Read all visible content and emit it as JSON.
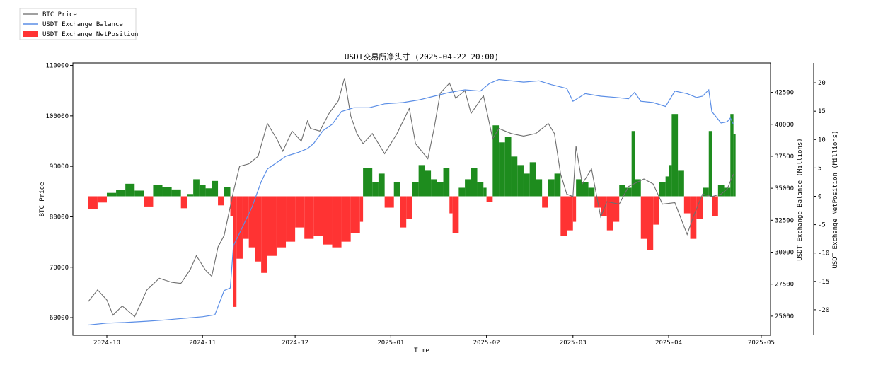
{
  "chart_data": {
    "type": "line+bar",
    "title": "USDT交易所净头寸 (2025-04-22 20:00)",
    "xlabel": "Time",
    "legend_position": "top-left",
    "legend": [
      {
        "label": "BTC Price",
        "color": "#808080",
        "kind": "line"
      },
      {
        "label": "USDT Exchange Balance",
        "color": "#5b8ee6",
        "kind": "line"
      },
      {
        "label": "USDT Exchange NetPosition",
        "color": "#ff3333",
        "kind": "bar"
      }
    ],
    "x_ticks": [
      "2024-10",
      "2024-11",
      "2024-12",
      "2025-01",
      "2025-02",
      "2025-03",
      "2025-04",
      "2025-05"
    ],
    "x_range": [
      "2024-09-20",
      "2025-05-04"
    ],
    "axes": {
      "price": {
        "label": "BTC Price",
        "range": [
          56500,
          110500
        ],
        "ticks": [
          60000,
          70000,
          80000,
          90000,
          100000,
          110000
        ]
      },
      "balance": {
        "label": "USDT Exchange Balance (Millions)",
        "range": [
          23500,
          44800
        ],
        "ticks": [
          25000,
          27500,
          30000,
          32500,
          35000,
          37500,
          40000,
          42500
        ]
      },
      "netposition": {
        "label": "USDT Exchange NetPosition (Millions)",
        "range": [
          -24.5,
          23.5
        ],
        "ticks": [
          -20,
          -15,
          -10,
          -5,
          0,
          5,
          10,
          15,
          20
        ]
      }
    },
    "series": [
      {
        "name": "BTC Price",
        "color": "#6e6e6e",
        "points": [
          [
            "2024-09-25",
            63200
          ],
          [
            "2024-09-28",
            65500
          ],
          [
            "2024-10-01",
            63500
          ],
          [
            "2024-10-03",
            60500
          ],
          [
            "2024-10-06",
            62300
          ],
          [
            "2024-10-10",
            60200
          ],
          [
            "2024-10-14",
            65500
          ],
          [
            "2024-10-18",
            67800
          ],
          [
            "2024-10-22",
            67000
          ],
          [
            "2024-10-25",
            66800
          ],
          [
            "2024-10-28",
            69500
          ],
          [
            "2024-10-30",
            72300
          ],
          [
            "2024-11-02",
            69400
          ],
          [
            "2024-11-04",
            68200
          ],
          [
            "2024-11-06",
            74000
          ],
          [
            "2024-11-08",
            76300
          ],
          [
            "2024-11-11",
            85000
          ],
          [
            "2024-11-13",
            90000
          ],
          [
            "2024-11-16",
            90500
          ],
          [
            "2024-11-19",
            92000
          ],
          [
            "2024-11-22",
            98500
          ],
          [
            "2024-11-25",
            95500
          ],
          [
            "2024-11-27",
            93000
          ],
          [
            "2024-11-30",
            97000
          ],
          [
            "2024-12-03",
            95000
          ],
          [
            "2024-12-05",
            99000
          ],
          [
            "2024-12-06",
            97500
          ],
          [
            "2024-12-09",
            97000
          ],
          [
            "2024-12-12",
            100500
          ],
          [
            "2024-12-15",
            103000
          ],
          [
            "2024-12-17",
            107500
          ],
          [
            "2024-12-19",
            100000
          ],
          [
            "2024-12-21",
            96500
          ],
          [
            "2024-12-23",
            94500
          ],
          [
            "2024-12-26",
            96500
          ],
          [
            "2024-12-30",
            92500
          ],
          [
            "2025-01-03",
            96500
          ],
          [
            "2025-01-07",
            101500
          ],
          [
            "2025-01-09",
            94500
          ],
          [
            "2025-01-13",
            91500
          ],
          [
            "2025-01-15",
            97500
          ],
          [
            "2025-01-17",
            104500
          ],
          [
            "2025-01-20",
            106500
          ],
          [
            "2025-01-22",
            103500
          ],
          [
            "2025-01-25",
            105000
          ],
          [
            "2025-01-27",
            100500
          ],
          [
            "2025-01-31",
            104000
          ],
          [
            "2025-02-03",
            95500
          ],
          [
            "2025-02-05",
            97500
          ],
          [
            "2025-02-09",
            96500
          ],
          [
            "2025-02-13",
            96000
          ],
          [
            "2025-02-17",
            96500
          ],
          [
            "2025-02-21",
            98500
          ],
          [
            "2025-02-23",
            96500
          ],
          [
            "2025-02-25",
            88500
          ],
          [
            "2025-02-27",
            84500
          ],
          [
            "2025-03-01",
            84000
          ],
          [
            "2025-03-02",
            94000
          ],
          [
            "2025-03-04",
            86500
          ],
          [
            "2025-03-07",
            89500
          ],
          [
            "2025-03-10",
            80000
          ],
          [
            "2025-03-12",
            83000
          ],
          [
            "2025-03-16",
            82500
          ],
          [
            "2025-03-19",
            86000
          ],
          [
            "2025-03-24",
            87500
          ],
          [
            "2025-03-27",
            86500
          ],
          [
            "2025-03-30",
            82500
          ],
          [
            "2025-04-03",
            82800
          ],
          [
            "2025-04-07",
            76500
          ],
          [
            "2025-04-09",
            80000
          ],
          [
            "2025-04-12",
            84500
          ],
          [
            "2025-04-15",
            84000
          ],
          [
            "2025-04-18",
            84500
          ],
          [
            "2025-04-20",
            85500
          ],
          [
            "2025-04-22",
            88500
          ]
        ]
      },
      {
        "name": "USDT Exchange Balance",
        "color": "#5b8ee6",
        "points": [
          [
            "2024-09-25",
            24300
          ],
          [
            "2024-10-01",
            24450
          ],
          [
            "2024-10-07",
            24500
          ],
          [
            "2024-10-14",
            24600
          ],
          [
            "2024-10-20",
            24700
          ],
          [
            "2024-10-27",
            24850
          ],
          [
            "2024-11-01",
            24950
          ],
          [
            "2024-11-05",
            25100
          ],
          [
            "2024-11-08",
            27000
          ],
          [
            "2024-11-10",
            27200
          ],
          [
            "2024-11-11",
            30500
          ],
          [
            "2024-11-14",
            32000
          ],
          [
            "2024-11-17",
            33500
          ],
          [
            "2024-11-20",
            35500
          ],
          [
            "2024-11-22",
            36500
          ],
          [
            "2024-11-25",
            37000
          ],
          [
            "2024-11-28",
            37500
          ],
          [
            "2024-12-02",
            37800
          ],
          [
            "2024-12-05",
            38100
          ],
          [
            "2024-12-07",
            38500
          ],
          [
            "2024-12-10",
            39500
          ],
          [
            "2024-12-13",
            40000
          ],
          [
            "2024-12-16",
            41000
          ],
          [
            "2024-12-20",
            41300
          ],
          [
            "2024-12-25",
            41300
          ],
          [
            "2024-12-30",
            41600
          ],
          [
            "2025-01-05",
            41700
          ],
          [
            "2025-01-10",
            41900
          ],
          [
            "2025-01-15",
            42200
          ],
          [
            "2025-01-20",
            42500
          ],
          [
            "2025-01-25",
            42700
          ],
          [
            "2025-01-30",
            42600
          ],
          [
            "2025-02-02",
            43200
          ],
          [
            "2025-02-05",
            43500
          ],
          [
            "2025-02-09",
            43400
          ],
          [
            "2025-02-13",
            43300
          ],
          [
            "2025-02-18",
            43400
          ],
          [
            "2025-02-22",
            43100
          ],
          [
            "2025-02-27",
            42800
          ],
          [
            "2025-03-01",
            41800
          ],
          [
            "2025-03-05",
            42400
          ],
          [
            "2025-03-10",
            42200
          ],
          [
            "2025-03-15",
            42100
          ],
          [
            "2025-03-19",
            42000
          ],
          [
            "2025-03-21",
            42500
          ],
          [
            "2025-03-23",
            41800
          ],
          [
            "2025-03-27",
            41700
          ],
          [
            "2025-03-31",
            41400
          ],
          [
            "2025-04-03",
            42600
          ],
          [
            "2025-04-07",
            42400
          ],
          [
            "2025-04-10",
            42100
          ],
          [
            "2025-04-12",
            42200
          ],
          [
            "2025-04-14",
            42700
          ],
          [
            "2025-04-15",
            41000
          ],
          [
            "2025-04-18",
            40100
          ],
          [
            "2025-04-20",
            40200
          ],
          [
            "2025-04-21",
            40500
          ],
          [
            "2025-04-22",
            40000
          ]
        ]
      },
      {
        "name": "USDT Exchange NetPosition",
        "color_positive": "#1e8c1e",
        "color_negative": "#ff3333",
        "points": [
          [
            "2024-09-25",
            -2.2
          ],
          [
            "2024-09-28",
            -1.1
          ],
          [
            "2024-10-01",
            0.6
          ],
          [
            "2024-10-04",
            1.1
          ],
          [
            "2024-10-07",
            2.2
          ],
          [
            "2024-10-10",
            1.0
          ],
          [
            "2024-10-13",
            -1.8
          ],
          [
            "2024-10-16",
            2.0
          ],
          [
            "2024-10-19",
            1.6
          ],
          [
            "2024-10-22",
            1.2
          ],
          [
            "2024-10-25",
            -2.1
          ],
          [
            "2024-10-27",
            0.4
          ],
          [
            "2024-10-29",
            3.0
          ],
          [
            "2024-10-31",
            2.0
          ],
          [
            "2024-11-02",
            1.4
          ],
          [
            "2024-11-04",
            2.7
          ],
          [
            "2024-11-06",
            -1.6
          ],
          [
            "2024-11-08",
            1.6
          ],
          [
            "2024-11-10",
            -3.5
          ],
          [
            "2024-11-11",
            -19.5
          ],
          [
            "2024-11-12",
            -11.0
          ],
          [
            "2024-11-14",
            -7.5
          ],
          [
            "2024-11-16",
            -9.0
          ],
          [
            "2024-11-18",
            -11.5
          ],
          [
            "2024-11-20",
            -13.5
          ],
          [
            "2024-11-22",
            -10.5
          ],
          [
            "2024-11-25",
            -9.0
          ],
          [
            "2024-11-28",
            -8.0
          ],
          [
            "2024-12-01",
            -5.5
          ],
          [
            "2024-12-04",
            -7.5
          ],
          [
            "2024-12-07",
            -7.0
          ],
          [
            "2024-12-10",
            -8.5
          ],
          [
            "2024-12-13",
            -9.0
          ],
          [
            "2024-12-16",
            -8.0
          ],
          [
            "2024-12-19",
            -6.5
          ],
          [
            "2024-12-22",
            -4.5
          ],
          [
            "2024-12-23",
            5.0
          ],
          [
            "2024-12-26",
            2.5
          ],
          [
            "2024-12-28",
            4.0
          ],
          [
            "2024-12-30",
            -2.0
          ],
          [
            "2025-01-02",
            2.5
          ],
          [
            "2025-01-04",
            -5.5
          ],
          [
            "2025-01-06",
            -4.0
          ],
          [
            "2025-01-08",
            2.5
          ],
          [
            "2025-01-10",
            5.5
          ],
          [
            "2025-01-12",
            4.5
          ],
          [
            "2025-01-14",
            3.0
          ],
          [
            "2025-01-16",
            2.5
          ],
          [
            "2025-01-18",
            5.0
          ],
          [
            "2025-01-20",
            -3.0
          ],
          [
            "2025-01-21",
            -6.5
          ],
          [
            "2025-01-23",
            1.5
          ],
          [
            "2025-01-25",
            3.0
          ],
          [
            "2025-01-27",
            5.0
          ],
          [
            "2025-01-29",
            2.5
          ],
          [
            "2025-01-31",
            1.5
          ],
          [
            "2025-02-01",
            -1.0
          ],
          [
            "2025-02-03",
            12.5
          ],
          [
            "2025-02-05",
            9.5
          ],
          [
            "2025-02-07",
            10.5
          ],
          [
            "2025-02-09",
            7.0
          ],
          [
            "2025-02-11",
            5.5
          ],
          [
            "2025-02-13",
            4.0
          ],
          [
            "2025-02-15",
            6.0
          ],
          [
            "2025-02-17",
            3.0
          ],
          [
            "2025-02-19",
            -2.0
          ],
          [
            "2025-02-21",
            3.0
          ],
          [
            "2025-02-23",
            4.0
          ],
          [
            "2025-02-25",
            -7.0
          ],
          [
            "2025-02-27",
            -6.0
          ],
          [
            "2025-03-01",
            -4.5
          ],
          [
            "2025-03-02",
            3.0
          ],
          [
            "2025-03-04",
            2.5
          ],
          [
            "2025-03-06",
            1.5
          ],
          [
            "2025-03-08",
            -2.0
          ],
          [
            "2025-03-10",
            -3.5
          ],
          [
            "2025-03-12",
            -6.0
          ],
          [
            "2025-03-14",
            -4.5
          ],
          [
            "2025-03-16",
            2.0
          ],
          [
            "2025-03-18",
            1.5
          ],
          [
            "2025-03-20",
            11.5
          ],
          [
            "2025-03-21",
            3.0
          ],
          [
            "2025-03-23",
            -7.5
          ],
          [
            "2025-03-25",
            -9.5
          ],
          [
            "2025-03-27",
            -5.0
          ],
          [
            "2025-03-29",
            2.5
          ],
          [
            "2025-03-31",
            3.5
          ],
          [
            "2025-04-01",
            5.5
          ],
          [
            "2025-04-02",
            14.5
          ],
          [
            "2025-04-04",
            4.5
          ],
          [
            "2025-04-06",
            -3.0
          ],
          [
            "2025-04-08",
            -7.5
          ],
          [
            "2025-04-10",
            -4.0
          ],
          [
            "2025-04-12",
            1.5
          ],
          [
            "2025-04-14",
            11.5
          ],
          [
            "2025-04-15",
            -3.5
          ],
          [
            "2025-04-17",
            2.0
          ],
          [
            "2025-04-19",
            1.5
          ],
          [
            "2025-04-21",
            14.5
          ],
          [
            "2025-04-22",
            11.0
          ]
        ]
      }
    ]
  }
}
